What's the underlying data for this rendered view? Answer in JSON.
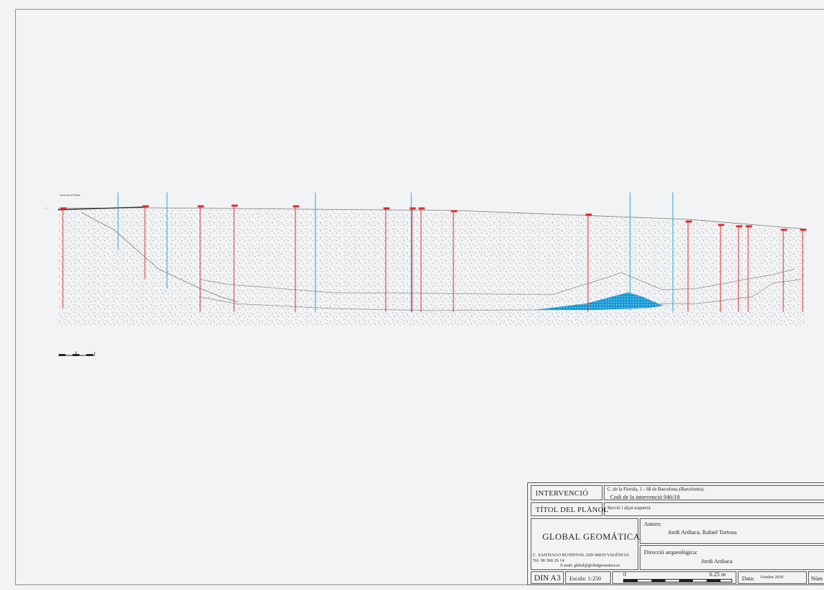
{
  "drawing": {
    "street_label": "Carrer de la Florida",
    "colors": {
      "ground": "#7d7d7d",
      "level": "#e0262c",
      "section": "#1aa3e0",
      "deposit": "#1a9ad6"
    }
  },
  "title_block": {
    "intervencio_label": "INTERVENCIÓ",
    "address": "C. de la Florida, 1 - 68 de Barcelona (Barcelonès).",
    "code": "Codi de la intervenció 046/18",
    "titol_label": "TÍTOL DEL PLÀNOL",
    "titol_value": "Secció i alçat esquerra",
    "company": "GLOBAL GEOMÁTICA",
    "company_address": "C. SANTIAGO RUSINYOL 32D  46019 VALÈNCIA",
    "phone": "Tel. 96 366 26 14",
    "email": "E-mail: global@globalgeomatica.es",
    "autors_label": "Autors:",
    "autors_value": "Jordi Ardiaca, Rafael Tortosa",
    "direccio_label": "Direcció arqueològica:",
    "direccio_value": "Jordi Ardiaca",
    "format": "DIN A3",
    "escala": "Escala: 1:250",
    "scale_start": "0",
    "scale_end": "6.25 m",
    "data_label": "Data:",
    "data_value": "Octubre 2018",
    "num_label": "Núm"
  }
}
